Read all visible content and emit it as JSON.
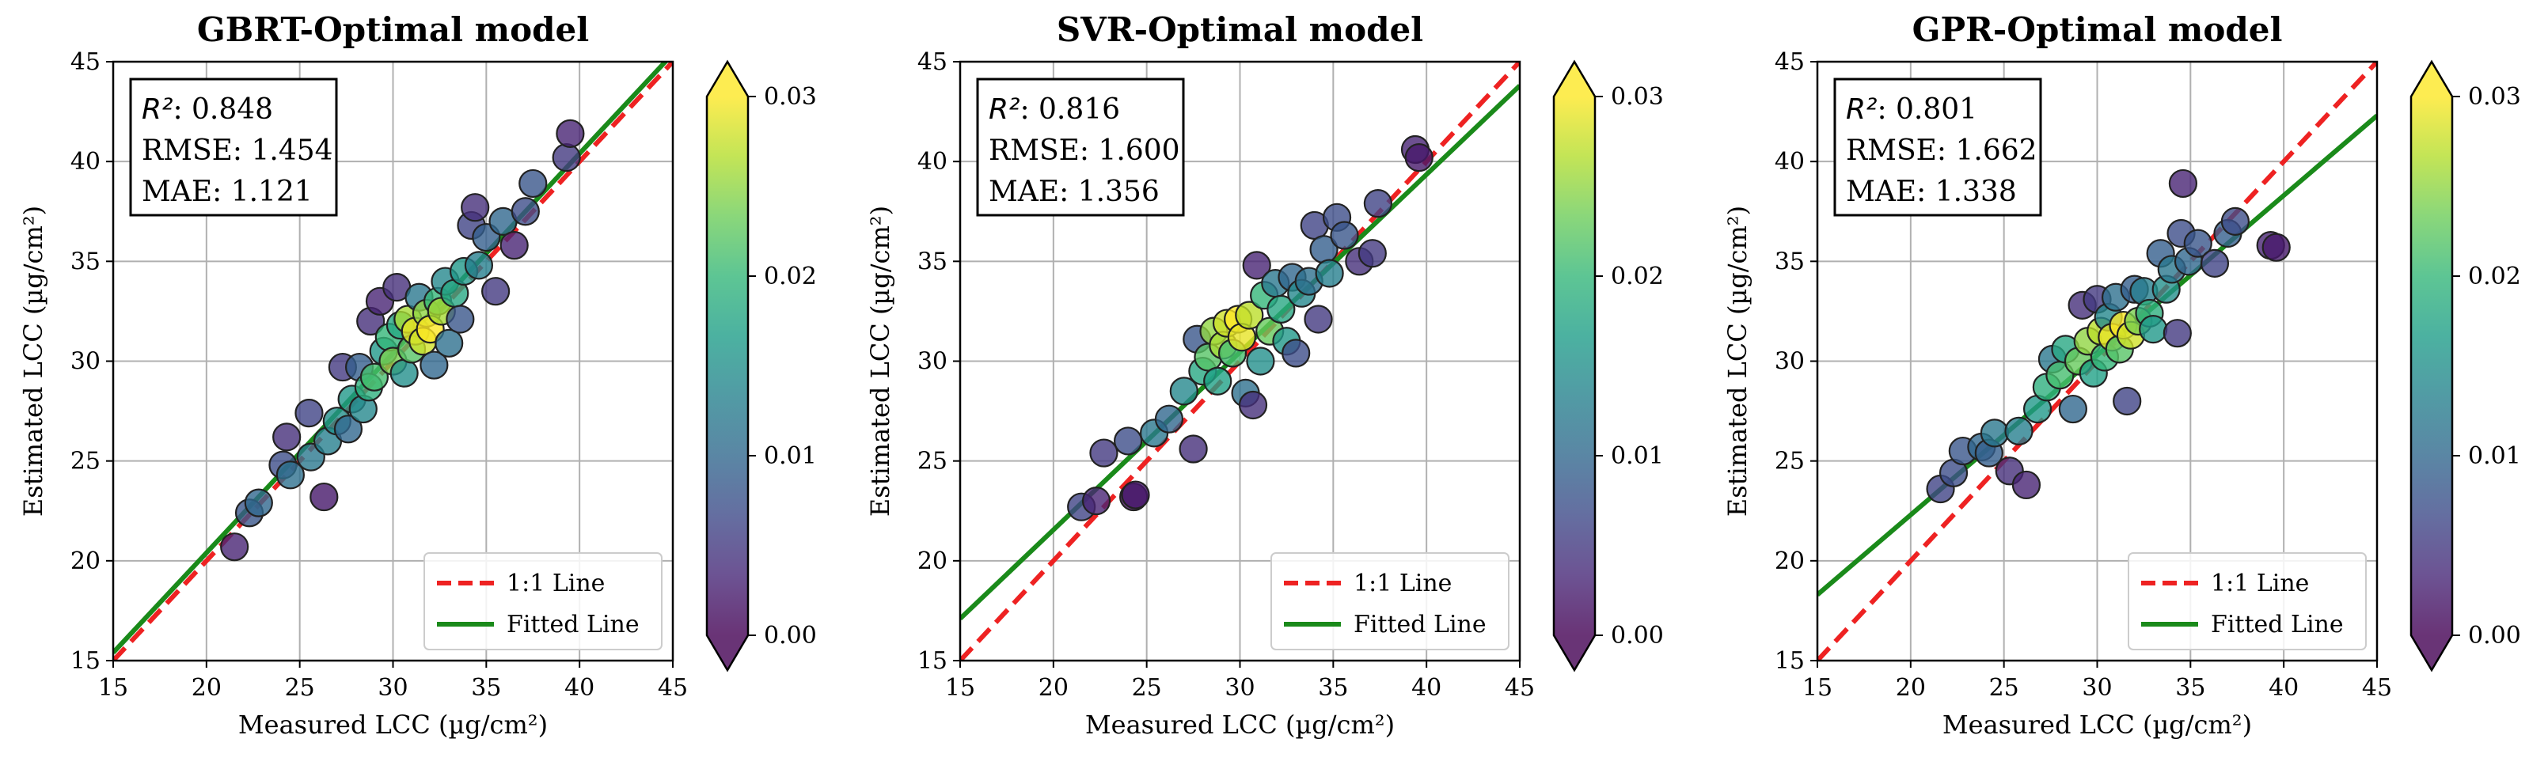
{
  "chart_data": [
    {
      "type": "scatter",
      "title": "GBRT-Optimal model",
      "xlabel": "Measured LCC (µg/cm²)",
      "ylabel": "Estimated LCC (µg/cm²)",
      "xlim": [
        15,
        45
      ],
      "ylim": [
        15,
        45
      ],
      "xticks": [
        "15",
        "20",
        "25",
        "30",
        "35",
        "40",
        "45"
      ],
      "yticks": [
        "15",
        "20",
        "25",
        "30",
        "35",
        "40",
        "45"
      ],
      "grid": true,
      "stats": {
        "r2_label": "R²",
        "r2": ": 0.848",
        "rmse": "RMSE: 1.454",
        "mae": "MAE: 1.121"
      },
      "legend": {
        "position": "bottom-right",
        "one_to_one": "1:1 Line",
        "fitted": "Fitted Line"
      },
      "fit": {
        "slope": 1.0,
        "intercept": 0.4
      },
      "colorbar": {
        "min": 0.0,
        "max": 0.03,
        "ticks": [
          "0.00",
          "0.01",
          "0.02",
          "0.03"
        ],
        "colormap": "viridis"
      },
      "points": [
        {
          "x": 21.5,
          "y": 20.7,
          "c": 0.003
        },
        {
          "x": 22.3,
          "y": 22.4,
          "c": 0.008
        },
        {
          "x": 22.8,
          "y": 22.9,
          "c": 0.01
        },
        {
          "x": 24.1,
          "y": 24.8,
          "c": 0.007
        },
        {
          "x": 24.3,
          "y": 26.2,
          "c": 0.004
        },
        {
          "x": 24.5,
          "y": 24.3,
          "c": 0.011
        },
        {
          "x": 25.5,
          "y": 27.4,
          "c": 0.006
        },
        {
          "x": 25.6,
          "y": 25.2,
          "c": 0.012
        },
        {
          "x": 26.3,
          "y": 23.2,
          "c": 0.002
        },
        {
          "x": 26.5,
          "y": 26.0,
          "c": 0.013
        },
        {
          "x": 27.0,
          "y": 27.0,
          "c": 0.015
        },
        {
          "x": 27.3,
          "y": 29.7,
          "c": 0.005
        },
        {
          "x": 27.6,
          "y": 26.6,
          "c": 0.01
        },
        {
          "x": 27.8,
          "y": 28.1,
          "c": 0.016
        },
        {
          "x": 28.2,
          "y": 29.7,
          "c": 0.009
        },
        {
          "x": 28.4,
          "y": 27.6,
          "c": 0.014
        },
        {
          "x": 28.7,
          "y": 28.7,
          "c": 0.019
        },
        {
          "x": 28.8,
          "y": 32.0,
          "c": 0.004
        },
        {
          "x": 29.0,
          "y": 29.2,
          "c": 0.021
        },
        {
          "x": 29.3,
          "y": 33.0,
          "c": 0.003
        },
        {
          "x": 29.5,
          "y": 30.5,
          "c": 0.016
        },
        {
          "x": 29.8,
          "y": 31.2,
          "c": 0.02
        },
        {
          "x": 30.0,
          "y": 30.0,
          "c": 0.024
        },
        {
          "x": 30.2,
          "y": 33.7,
          "c": 0.004
        },
        {
          "x": 30.4,
          "y": 31.8,
          "c": 0.018
        },
        {
          "x": 30.6,
          "y": 29.4,
          "c": 0.015
        },
        {
          "x": 30.8,
          "y": 32.1,
          "c": 0.026
        },
        {
          "x": 31.0,
          "y": 30.6,
          "c": 0.022
        },
        {
          "x": 31.2,
          "y": 31.5,
          "c": 0.029
        },
        {
          "x": 31.4,
          "y": 33.2,
          "c": 0.012
        },
        {
          "x": 31.6,
          "y": 31.0,
          "c": 0.028
        },
        {
          "x": 31.8,
          "y": 32.4,
          "c": 0.025
        },
        {
          "x": 32.0,
          "y": 31.6,
          "c": 0.03
        },
        {
          "x": 32.2,
          "y": 29.8,
          "c": 0.01
        },
        {
          "x": 32.4,
          "y": 33.0,
          "c": 0.02
        },
        {
          "x": 32.6,
          "y": 32.5,
          "c": 0.026
        },
        {
          "x": 32.8,
          "y": 34.0,
          "c": 0.014
        },
        {
          "x": 33.0,
          "y": 30.9,
          "c": 0.011
        },
        {
          "x": 33.3,
          "y": 33.4,
          "c": 0.018
        },
        {
          "x": 33.6,
          "y": 32.1,
          "c": 0.008
        },
        {
          "x": 33.8,
          "y": 34.5,
          "c": 0.016
        },
        {
          "x": 34.2,
          "y": 36.8,
          "c": 0.006
        },
        {
          "x": 34.4,
          "y": 37.7,
          "c": 0.004
        },
        {
          "x": 34.6,
          "y": 34.8,
          "c": 0.013
        },
        {
          "x": 35.0,
          "y": 36.2,
          "c": 0.009
        },
        {
          "x": 35.5,
          "y": 33.5,
          "c": 0.005
        },
        {
          "x": 35.9,
          "y": 37.0,
          "c": 0.01
        },
        {
          "x": 36.5,
          "y": 35.8,
          "c": 0.003
        },
        {
          "x": 37.1,
          "y": 37.5,
          "c": 0.007
        },
        {
          "x": 37.5,
          "y": 38.9,
          "c": 0.008
        },
        {
          "x": 39.3,
          "y": 40.2,
          "c": 0.005
        },
        {
          "x": 39.5,
          "y": 41.4,
          "c": 0.003
        }
      ]
    },
    {
      "type": "scatter",
      "title": "SVR-Optimal model",
      "xlabel": "Measured LCC (µg/cm²)",
      "ylabel": "Estimated LCC (µg/cm²)",
      "xlim": [
        15,
        45
      ],
      "ylim": [
        15,
        45
      ],
      "xticks": [
        "15",
        "20",
        "25",
        "30",
        "35",
        "40",
        "45"
      ],
      "yticks": [
        "15",
        "20",
        "25",
        "30",
        "35",
        "40",
        "45"
      ],
      "grid": true,
      "stats": {
        "r2_label": "R²",
        "r2": ": 0.816",
        "rmse": "RMSE: 1.600",
        "mae": "MAE: 1.356"
      },
      "legend": {
        "position": "bottom-right",
        "one_to_one": "1:1 Line",
        "fitted": "Fitted Line"
      },
      "fit": {
        "slope": 0.89,
        "intercept": 3.75
      },
      "colorbar": {
        "min": 0.0,
        "max": 0.03,
        "ticks": [
          "0.00",
          "0.01",
          "0.02",
          "0.03"
        ],
        "colormap": "viridis"
      },
      "points": [
        {
          "x": 21.5,
          "y": 22.7,
          "c": 0.006
        },
        {
          "x": 22.3,
          "y": 23.0,
          "c": 0.003
        },
        {
          "x": 22.7,
          "y": 25.4,
          "c": 0.005
        },
        {
          "x": 24.0,
          "y": 26.0,
          "c": 0.007
        },
        {
          "x": 24.3,
          "y": 23.2,
          "c": 0.001
        },
        {
          "x": 24.4,
          "y": 23.3,
          "c": 0.002
        },
        {
          "x": 25.4,
          "y": 26.4,
          "c": 0.012
        },
        {
          "x": 26.2,
          "y": 27.1,
          "c": 0.01
        },
        {
          "x": 27.0,
          "y": 28.5,
          "c": 0.014
        },
        {
          "x": 27.5,
          "y": 25.6,
          "c": 0.004
        },
        {
          "x": 27.7,
          "y": 31.1,
          "c": 0.008
        },
        {
          "x": 28.0,
          "y": 29.5,
          "c": 0.018
        },
        {
          "x": 28.3,
          "y": 30.2,
          "c": 0.022
        },
        {
          "x": 28.6,
          "y": 31.5,
          "c": 0.025
        },
        {
          "x": 28.8,
          "y": 29.0,
          "c": 0.017
        },
        {
          "x": 29.1,
          "y": 30.8,
          "c": 0.026
        },
        {
          "x": 29.3,
          "y": 31.9,
          "c": 0.028
        },
        {
          "x": 29.6,
          "y": 30.4,
          "c": 0.021
        },
        {
          "x": 29.9,
          "y": 32.1,
          "c": 0.03
        },
        {
          "x": 30.1,
          "y": 31.2,
          "c": 0.029
        },
        {
          "x": 30.3,
          "y": 28.4,
          "c": 0.011
        },
        {
          "x": 30.5,
          "y": 32.3,
          "c": 0.027
        },
        {
          "x": 30.7,
          "y": 27.8,
          "c": 0.004
        },
        {
          "x": 30.9,
          "y": 34.8,
          "c": 0.003
        },
        {
          "x": 31.1,
          "y": 30.0,
          "c": 0.015
        },
        {
          "x": 31.3,
          "y": 33.3,
          "c": 0.02
        },
        {
          "x": 31.6,
          "y": 31.5,
          "c": 0.023
        },
        {
          "x": 31.9,
          "y": 33.9,
          "c": 0.012
        },
        {
          "x": 32.2,
          "y": 32.6,
          "c": 0.018
        },
        {
          "x": 32.5,
          "y": 31.0,
          "c": 0.016
        },
        {
          "x": 32.8,
          "y": 34.2,
          "c": 0.01
        },
        {
          "x": 33.0,
          "y": 30.4,
          "c": 0.007
        },
        {
          "x": 33.3,
          "y": 33.4,
          "c": 0.014
        },
        {
          "x": 33.7,
          "y": 34.0,
          "c": 0.011
        },
        {
          "x": 34.0,
          "y": 36.8,
          "c": 0.006
        },
        {
          "x": 34.2,
          "y": 32.1,
          "c": 0.005
        },
        {
          "x": 34.5,
          "y": 35.6,
          "c": 0.009
        },
        {
          "x": 34.8,
          "y": 34.4,
          "c": 0.013
        },
        {
          "x": 35.2,
          "y": 37.2,
          "c": 0.007
        },
        {
          "x": 35.6,
          "y": 36.3,
          "c": 0.008
        },
        {
          "x": 36.4,
          "y": 35.0,
          "c": 0.004
        },
        {
          "x": 37.1,
          "y": 35.4,
          "c": 0.005
        },
        {
          "x": 37.4,
          "y": 37.9,
          "c": 0.006
        },
        {
          "x": 39.4,
          "y": 40.6,
          "c": 0.003
        },
        {
          "x": 39.6,
          "y": 40.2,
          "c": 0.002
        }
      ]
    },
    {
      "type": "scatter",
      "title": "GPR-Optimal model",
      "xlabel": "Measured LCC (µg/cm²)",
      "ylabel": "Estimated LCC (µg/cm²)",
      "xlim": [
        15,
        45
      ],
      "ylim": [
        15,
        45
      ],
      "xticks": [
        "15",
        "20",
        "25",
        "30",
        "35",
        "40",
        "45"
      ],
      "yticks": [
        "15",
        "20",
        "25",
        "30",
        "35",
        "40",
        "45"
      ],
      "grid": true,
      "stats": {
        "r2_label": "R²",
        "r2": ": 0.801",
        "rmse": "RMSE: 1.662",
        "mae": "MAE: 1.338"
      },
      "legend": {
        "position": "bottom-right",
        "one_to_one": "1:1 Line",
        "fitted": "Fitted Line"
      },
      "fit": {
        "slope": 0.8,
        "intercept": 6.3
      },
      "colorbar": {
        "min": 0.0,
        "max": 0.03,
        "ticks": [
          "0.00",
          "0.01",
          "0.02",
          "0.03"
        ],
        "colormap": "viridis"
      },
      "points": [
        {
          "x": 21.6,
          "y": 23.6,
          "c": 0.006
        },
        {
          "x": 22.3,
          "y": 24.4,
          "c": 0.007
        },
        {
          "x": 22.8,
          "y": 25.5,
          "c": 0.008
        },
        {
          "x": 23.8,
          "y": 25.7,
          "c": 0.01
        },
        {
          "x": 24.2,
          "y": 25.4,
          "c": 0.009
        },
        {
          "x": 24.5,
          "y": 26.4,
          "c": 0.012
        },
        {
          "x": 25.3,
          "y": 24.5,
          "c": 0.004
        },
        {
          "x": 25.8,
          "y": 26.5,
          "c": 0.013
        },
        {
          "x": 26.2,
          "y": 23.8,
          "c": 0.003
        },
        {
          "x": 26.8,
          "y": 27.6,
          "c": 0.016
        },
        {
          "x": 27.3,
          "y": 28.7,
          "c": 0.019
        },
        {
          "x": 27.6,
          "y": 30.1,
          "c": 0.012
        },
        {
          "x": 28.0,
          "y": 29.3,
          "c": 0.021
        },
        {
          "x": 28.3,
          "y": 30.6,
          "c": 0.018
        },
        {
          "x": 28.7,
          "y": 27.6,
          "c": 0.01
        },
        {
          "x": 29.0,
          "y": 30.0,
          "c": 0.023
        },
        {
          "x": 29.2,
          "y": 32.8,
          "c": 0.004
        },
        {
          "x": 29.5,
          "y": 31.0,
          "c": 0.025
        },
        {
          "x": 29.8,
          "y": 29.4,
          "c": 0.017
        },
        {
          "x": 30.0,
          "y": 33.1,
          "c": 0.005
        },
        {
          "x": 30.2,
          "y": 31.5,
          "c": 0.027
        },
        {
          "x": 30.4,
          "y": 30.2,
          "c": 0.02
        },
        {
          "x": 30.6,
          "y": 32.2,
          "c": 0.014
        },
        {
          "x": 30.8,
          "y": 31.2,
          "c": 0.029
        },
        {
          "x": 31.0,
          "y": 33.2,
          "c": 0.011
        },
        {
          "x": 31.2,
          "y": 30.6,
          "c": 0.022
        },
        {
          "x": 31.4,
          "y": 31.8,
          "c": 0.03
        },
        {
          "x": 31.6,
          "y": 28.0,
          "c": 0.006
        },
        {
          "x": 31.8,
          "y": 31.3,
          "c": 0.028
        },
        {
          "x": 32.0,
          "y": 33.6,
          "c": 0.009
        },
        {
          "x": 32.2,
          "y": 32.0,
          "c": 0.024
        },
        {
          "x": 32.5,
          "y": 33.5,
          "c": 0.013
        },
        {
          "x": 32.8,
          "y": 32.4,
          "c": 0.019
        },
        {
          "x": 33.0,
          "y": 31.6,
          "c": 0.016
        },
        {
          "x": 33.4,
          "y": 35.4,
          "c": 0.009
        },
        {
          "x": 33.7,
          "y": 33.6,
          "c": 0.015
        },
        {
          "x": 34.0,
          "y": 34.6,
          "c": 0.012
        },
        {
          "x": 34.3,
          "y": 31.4,
          "c": 0.005
        },
        {
          "x": 34.5,
          "y": 36.4,
          "c": 0.007
        },
        {
          "x": 34.6,
          "y": 38.9,
          "c": 0.003
        },
        {
          "x": 34.9,
          "y": 35.0,
          "c": 0.01
        },
        {
          "x": 35.4,
          "y": 35.9,
          "c": 0.008
        },
        {
          "x": 36.3,
          "y": 34.9,
          "c": 0.006
        },
        {
          "x": 37.0,
          "y": 36.4,
          "c": 0.009
        },
        {
          "x": 37.4,
          "y": 37.0,
          "c": 0.007
        },
        {
          "x": 39.3,
          "y": 35.8,
          "c": 0.003
        },
        {
          "x": 39.6,
          "y": 35.7,
          "c": 0.002
        }
      ]
    }
  ]
}
